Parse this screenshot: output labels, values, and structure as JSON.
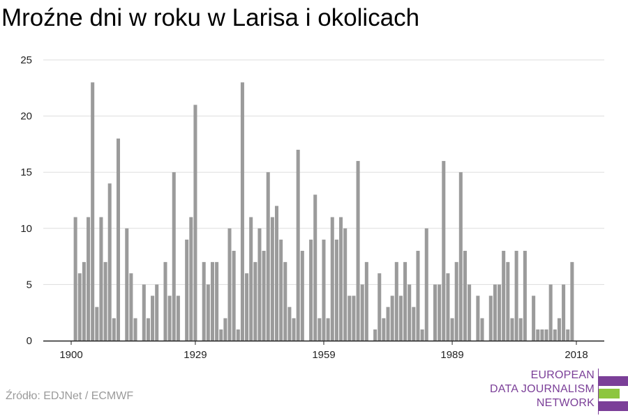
{
  "chart_data": {
    "type": "bar",
    "title": "Mroźne dni w roku w Larisa i okolicach",
    "xlabel": "",
    "ylabel": "",
    "ylim": [
      0,
      25
    ],
    "yticks": [
      "0",
      "5",
      "10",
      "15",
      "20",
      "25"
    ],
    "xticks": [
      "1900",
      "1929",
      "1959",
      "1989",
      "2018"
    ],
    "grid": true,
    "bar_color": "#9b9b9b",
    "years": [
      1900,
      1901,
      1902,
      1903,
      1904,
      1905,
      1906,
      1907,
      1908,
      1909,
      1910,
      1911,
      1912,
      1913,
      1914,
      1915,
      1916,
      1917,
      1918,
      1919,
      1920,
      1921,
      1922,
      1923,
      1924,
      1925,
      1926,
      1927,
      1928,
      1929,
      1930,
      1931,
      1932,
      1933,
      1934,
      1935,
      1936,
      1937,
      1938,
      1939,
      1940,
      1941,
      1942,
      1943,
      1944,
      1945,
      1946,
      1947,
      1948,
      1949,
      1950,
      1951,
      1952,
      1953,
      1954,
      1955,
      1956,
      1957,
      1958,
      1959,
      1960,
      1961,
      1962,
      1963,
      1964,
      1965,
      1966,
      1967,
      1968,
      1969,
      1970,
      1971,
      1972,
      1973,
      1974,
      1975,
      1976,
      1977,
      1978,
      1979,
      1980,
      1981,
      1982,
      1983,
      1984,
      1985,
      1986,
      1987,
      1988,
      1989,
      1990,
      1991,
      1992,
      1993,
      1994,
      1995,
      1996,
      1997,
      1998,
      1999,
      2000,
      2001,
      2002,
      2003,
      2004,
      2005,
      2006,
      2007,
      2008,
      2009,
      2010,
      2011,
      2012,
      2013,
      2014,
      2015,
      2016,
      2017,
      2018
    ],
    "values": [
      0,
      11,
      6,
      7,
      11,
      23,
      3,
      11,
      7,
      14,
      2,
      18,
      0,
      10,
      6,
      2,
      0,
      5,
      2,
      4,
      5,
      0,
      7,
      4,
      15,
      4,
      0,
      9,
      11,
      21,
      0,
      7,
      5,
      7,
      7,
      1,
      2,
      10,
      8,
      1,
      23,
      6,
      11,
      7,
      10,
      8,
      15,
      11,
      12,
      9,
      7,
      3,
      2,
      17,
      8,
      0,
      9,
      13,
      2,
      9,
      2,
      11,
      9,
      11,
      10,
      4,
      4,
      16,
      5,
      7,
      0,
      1,
      6,
      2,
      3,
      4,
      7,
      4,
      7,
      5,
      3,
      8,
      1,
      10,
      0,
      5,
      5,
      16,
      6,
      2,
      7,
      15,
      8,
      5,
      0,
      4,
      2,
      0,
      4,
      5,
      5,
      8,
      7,
      2,
      8,
      2,
      8,
      0,
      4,
      1,
      1,
      1,
      5,
      1,
      2,
      5,
      1,
      7,
      0
    ]
  },
  "source": "Źródło: EDJNet / ECMWF",
  "logo": {
    "lines": [
      "EUROPEAN",
      "DATA JOURNALISM",
      "NETWORK"
    ],
    "purple": "#7b3f98",
    "green": "#8dc63f"
  }
}
